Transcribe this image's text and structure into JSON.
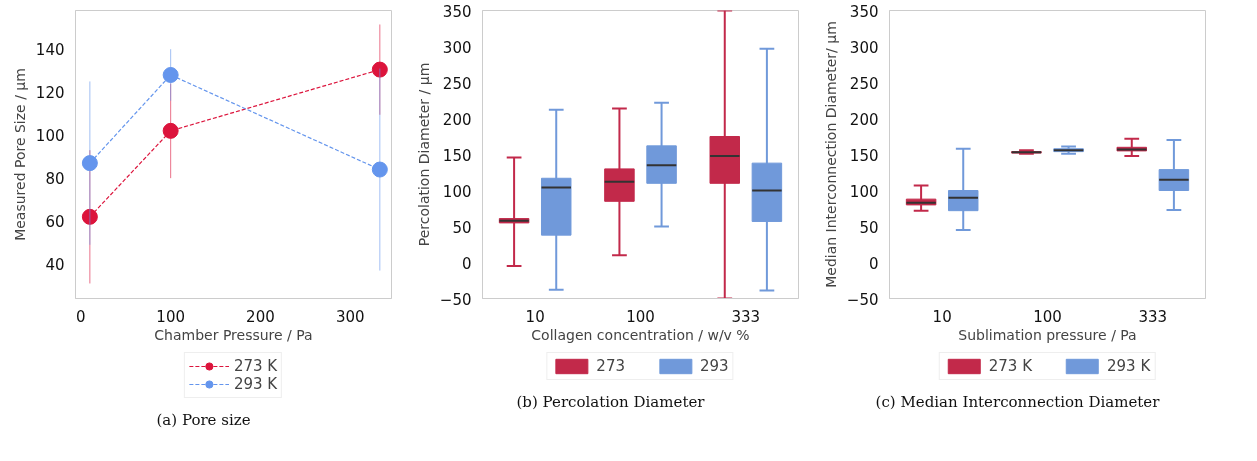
{
  "chart_data": [
    {
      "type": "line",
      "title": "(a) Pore size",
      "xlabel": "Chamber Pressure / Pa",
      "ylabel": "Measured Pore Size / µm",
      "x": [
        10,
        100,
        333
      ],
      "xlim": [
        -6,
        346
      ],
      "xticks": [
        0,
        100,
        200,
        300
      ],
      "ylim": [
        24,
        158
      ],
      "yticks": [
        40,
        60,
        80,
        100,
        120,
        140
      ],
      "marker": "circle",
      "line_style": "dashed",
      "legend": "bottom",
      "grid": false,
      "series": [
        {
          "name": "273 K",
          "color": "#dc143c",
          "values": [
            62,
            102,
            130.5
          ],
          "errors": [
            31,
            22,
            21
          ]
        },
        {
          "name": "293 K",
          "color": "#6495ed",
          "values": [
            87,
            128,
            84
          ],
          "errors": [
            38,
            12,
            47
          ]
        }
      ]
    },
    {
      "type": "box",
      "title": "(b) Percolation Diameter",
      "xlabel": "Collagen concentration / w/v %",
      "ylabel": "Percolation Diameter / µm",
      "categories": [
        "10",
        "100",
        "333"
      ],
      "ylim": [
        -50,
        350
      ],
      "yticks": [
        -50,
        0,
        50,
        100,
        150,
        200,
        250,
        300,
        350
      ],
      "legend": "bottom",
      "grid": false,
      "series": [
        {
          "name": "273",
          "color": "#c2294a",
          "boxes": [
            {
              "low": -5,
              "q1": 55,
              "median": 58,
              "q3": 61,
              "high": 146
            },
            {
              "low": 10,
              "q1": 85,
              "median": 112,
              "q3": 130,
              "high": 214
            },
            {
              "low": -50,
              "q1": 110,
              "median": 148,
              "q3": 175,
              "high": 350
            }
          ]
        },
        {
          "name": "293",
          "color": "#7099da",
          "boxes": [
            {
              "low": -38,
              "q1": 38,
              "median": 104,
              "q3": 117,
              "high": 212
            },
            {
              "low": 50,
              "q1": 110,
              "median": 135,
              "q3": 162,
              "high": 222
            },
            {
              "low": -39,
              "q1": 57,
              "median": 100,
              "q3": 138,
              "high": 297
            }
          ]
        }
      ]
    },
    {
      "type": "box",
      "title": "(c) Median Interconnection Diameter",
      "xlabel": "Sublimation pressure / Pa",
      "ylabel": "Median Interconnection Diameter/ µm",
      "categories": [
        "10",
        "100",
        "333"
      ],
      "ylim": [
        -50,
        350
      ],
      "yticks": [
        -50,
        0,
        50,
        100,
        150,
        200,
        250,
        300,
        350
      ],
      "legend": "bottom",
      "grid": false,
      "series": [
        {
          "name": "273 K",
          "color": "#c2294a",
          "boxes": [
            {
              "low": 72,
              "q1": 80,
              "median": 83,
              "q3": 88,
              "high": 107
            },
            {
              "low": 151,
              "q1": 152,
              "median": 153,
              "q3": 154,
              "high": 156
            },
            {
              "low": 148,
              "q1": 155,
              "median": 157,
              "q3": 160,
              "high": 172
            }
          ]
        },
        {
          "name": "293 K",
          "color": "#7099da",
          "boxes": [
            {
              "low": 45,
              "q1": 72,
              "median": 90,
              "q3": 100,
              "high": 158
            },
            {
              "low": 151,
              "q1": 154,
              "median": 156,
              "q3": 158,
              "high": 161
            },
            {
              "low": 73,
              "q1": 100,
              "median": 115,
              "q3": 129,
              "high": 170
            }
          ]
        }
      ]
    }
  ]
}
